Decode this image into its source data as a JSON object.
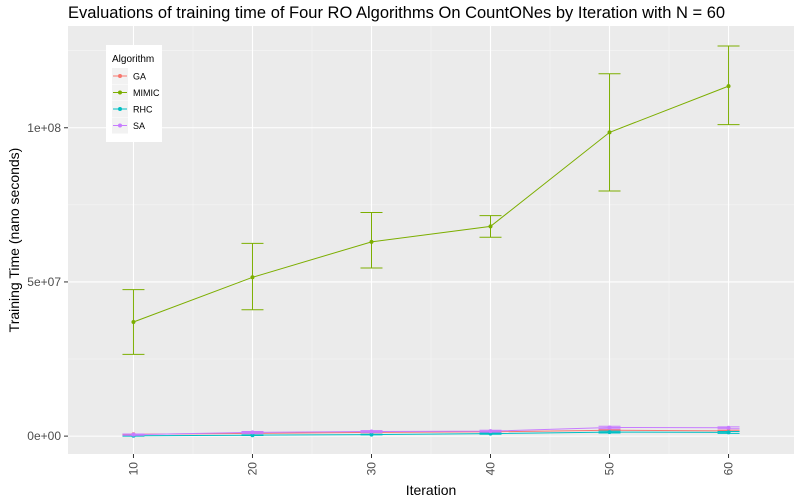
{
  "chart_data": {
    "type": "line",
    "title": "Evaluations of training time of Four RO Algorithms On CountONes by Iteration with N = 60",
    "xlabel": "Iteration",
    "ylabel": "Training Time (nano seconds)",
    "x": [
      10,
      20,
      30,
      40,
      50,
      60
    ],
    "x_ticks": [
      10,
      20,
      30,
      40,
      50,
      60
    ],
    "x_tick_labels": [
      "10",
      "20",
      "30",
      "40",
      "50",
      "60"
    ],
    "xlim": [
      4.5,
      65.5
    ],
    "y_ticks": [
      0,
      50000000,
      100000000
    ],
    "y_tick_labels": [
      "0e+00",
      "5e+07",
      "1e+08"
    ],
    "ylim": [
      -5800000,
      133000000
    ],
    "grid": true,
    "legend": {
      "title": "Algorithm",
      "position": "top-left"
    },
    "series": [
      {
        "name": "GA",
        "color": "#F8766D",
        "values": [
          600000,
          900000,
          1200000,
          1400000,
          1900000,
          1700000
        ],
        "err_low": [
          500000,
          800000,
          1100000,
          1300000,
          1700000,
          1500000
        ],
        "err_high": [
          700000,
          1000000,
          1300000,
          1500000,
          2100000,
          1900000
        ]
      },
      {
        "name": "MIMIC",
        "color": "#7CAE00",
        "values": [
          37000000,
          51500000,
          63000000,
          68000000,
          98500000,
          113500000
        ],
        "err_low": [
          26500000,
          41000000,
          54500000,
          64500000,
          79500000,
          101000000
        ],
        "err_high": [
          47500000,
          62500000,
          72500000,
          71500000,
          117500000,
          126500000
        ]
      },
      {
        "name": "RHC",
        "color": "#00BFC4",
        "values": [
          100000,
          300000,
          500000,
          800000,
          1300000,
          1200000
        ],
        "err_low": [
          0,
          200000,
          400000,
          600000,
          1000000,
          900000
        ],
        "err_high": [
          200000,
          400000,
          600000,
          1000000,
          1600000,
          1500000
        ]
      },
      {
        "name": "SA",
        "color": "#C77CFF",
        "values": [
          500000,
          1200000,
          1500000,
          1600000,
          2800000,
          2700000
        ],
        "err_low": [
          300000,
          900000,
          1200000,
          1300000,
          2400000,
          2400000
        ],
        "err_high": [
          700000,
          1500000,
          1800000,
          1900000,
          3200000,
          3000000
        ]
      }
    ]
  }
}
